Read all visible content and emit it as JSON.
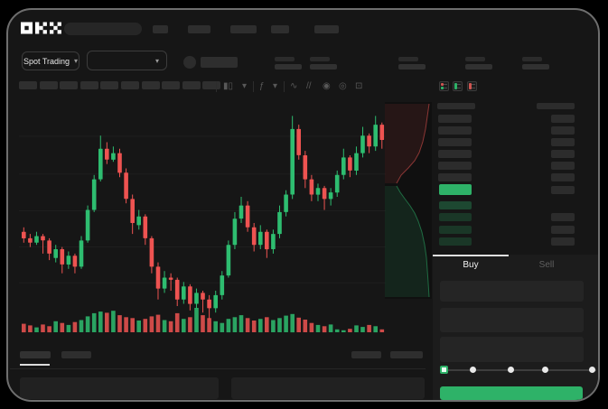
{
  "app": {
    "logo": "OKX"
  },
  "colors": {
    "background": "#000000",
    "card": "#161616",
    "panel": "#1c1c1c",
    "placeholder": "#2e2e2e",
    "accent_green": "#2eb268",
    "candle_up": "#2ebd70",
    "candle_down": "#ee5351",
    "text": "#f0f0f0",
    "muted": "#5f5f5f"
  },
  "topbar": {
    "nav_placeholder_count": 5,
    "has_search": true
  },
  "ticker": {
    "market_type": {
      "label": "Spot Trading",
      "chevron": "▾"
    },
    "pair_selector": {
      "chevron": "▾"
    },
    "stat_placeholder_count": 5
  },
  "chart_toolbar": {
    "timeframe_slot_count": 10,
    "icons": [
      {
        "name": "candle-style-icon",
        "glyph": "▮▯"
      },
      {
        "name": "style-dropdown-icon",
        "glyph": "▾"
      },
      {
        "name": "indicators-icon",
        "glyph": "ƒ"
      },
      {
        "name": "indicators-dropdown-icon",
        "glyph": "▾"
      },
      {
        "name": "line-tool-icon",
        "glyph": "∿"
      },
      {
        "name": "compare-icon",
        "glyph": "//"
      },
      {
        "name": "snapshot-icon",
        "glyph": "◉"
      },
      {
        "name": "settings-icon",
        "glyph": "◎"
      },
      {
        "name": "fullscreen-icon",
        "glyph": "⊡"
      }
    ]
  },
  "chart_data": {
    "type": "candlestick",
    "title": "",
    "xlabel": "",
    "ylabel": "",
    "axis_labels_visible": false,
    "grid": true,
    "grid_values": [
      89.7,
      72.4,
      55.6,
      39.1,
      22.6
    ],
    "value_scale": [
      0,
      100
    ],
    "up_color": "#2ebd70",
    "down_color": "#ee5351",
    "candles_ohlc": [
      [
        46,
        48,
        41,
        43
      ],
      [
        43,
        45,
        39,
        41
      ],
      [
        41,
        46,
        40,
        44
      ],
      [
        44,
        45,
        36,
        42
      ],
      [
        42,
        43,
        33,
        36
      ],
      [
        34,
        40,
        32,
        38
      ],
      [
        38,
        39,
        27,
        31
      ],
      [
        31,
        37,
        29,
        35
      ],
      [
        35,
        36,
        27,
        30
      ],
      [
        30,
        44,
        29,
        42
      ],
      [
        42,
        58,
        41,
        56
      ],
      [
        56,
        72,
        55,
        70
      ],
      [
        70,
        90,
        69,
        84
      ],
      [
        84,
        87,
        77,
        79
      ],
      [
        79,
        85,
        78,
        82
      ],
      [
        82,
        84,
        71,
        73
      ],
      [
        73,
        75,
        59,
        61
      ],
      [
        61,
        63,
        45,
        50
      ],
      [
        49,
        56,
        47,
        53
      ],
      [
        53,
        54,
        40,
        43
      ],
      [
        43,
        44,
        27,
        30
      ],
      [
        30,
        32,
        15,
        20
      ],
      [
        20,
        28,
        18,
        25
      ],
      [
        25,
        27,
        19,
        24
      ],
      [
        24,
        25,
        12,
        15
      ],
      [
        15,
        23,
        13,
        21
      ],
      [
        21,
        22,
        10,
        13
      ],
      [
        13,
        20,
        11,
        18
      ],
      [
        18,
        19,
        9,
        15
      ],
      [
        15,
        17,
        6,
        11
      ],
      [
        11,
        19,
        9,
        17
      ],
      [
        17,
        28,
        15,
        26
      ],
      [
        26,
        42,
        25,
        40
      ],
      [
        40,
        55,
        38,
        52
      ],
      [
        52,
        62,
        50,
        58
      ],
      [
        58,
        60,
        46,
        48
      ],
      [
        48,
        50,
        37,
        40
      ],
      [
        40,
        49,
        38,
        46
      ],
      [
        46,
        47,
        34,
        38
      ],
      [
        38,
        47,
        36,
        45
      ],
      [
        45,
        58,
        43,
        55
      ],
      [
        55,
        65,
        53,
        63
      ],
      [
        63,
        99,
        61,
        93
      ],
      [
        93,
        95,
        79,
        81
      ],
      [
        81,
        83,
        66,
        70
      ],
      [
        70,
        72,
        60,
        63
      ],
      [
        63,
        68,
        60,
        66
      ],
      [
        66,
        67,
        56,
        61
      ],
      [
        61,
        66,
        58,
        64
      ],
      [
        64,
        74,
        62,
        72
      ],
      [
        72,
        84,
        70,
        80
      ],
      [
        80,
        81,
        71,
        74
      ],
      [
        74,
        85,
        72,
        82
      ],
      [
        82,
        94,
        80,
        90
      ],
      [
        90,
        91,
        82,
        85
      ],
      [
        85,
        99,
        83,
        95
      ],
      [
        95,
        96,
        84,
        88
      ]
    ],
    "volume": [
      35,
      28,
      20,
      32,
      25,
      45,
      38,
      30,
      42,
      50,
      65,
      78,
      85,
      80,
      88,
      70,
      62,
      58,
      48,
      55,
      65,
      72,
      50,
      45,
      78,
      55,
      62,
      100,
      70,
      58,
      45,
      38,
      55,
      62,
      70,
      58,
      48,
      55,
      62,
      50,
      58,
      68,
      75,
      60,
      52,
      38,
      30,
      25,
      32,
      12,
      8,
      14,
      28,
      22,
      30,
      25,
      12
    ]
  },
  "depth_chart": {
    "ask_color": "#e75351",
    "bid_color": "#2ebd70",
    "ask_curve": [
      [
        49,
        2
      ],
      [
        47,
        16
      ],
      [
        45,
        30
      ],
      [
        42,
        44
      ],
      [
        38,
        56
      ],
      [
        33,
        65
      ],
      [
        26,
        73
      ],
      [
        18,
        81
      ],
      [
        13,
        90
      ]
    ],
    "bid_curve": [
      [
        13,
        93
      ],
      [
        17,
        100
      ],
      [
        22,
        107
      ],
      [
        28,
        115
      ],
      [
        33,
        123
      ],
      [
        37,
        132
      ],
      [
        41,
        144
      ],
      [
        44,
        158
      ],
      [
        46,
        172
      ],
      [
        47,
        186
      ],
      [
        48,
        200
      ],
      [
        49,
        216
      ]
    ]
  },
  "order_book": {
    "view_mode_icons": [
      "book-split-icon",
      "book-bids-icon",
      "book-asks-icon"
    ],
    "ask_row_count": 6,
    "bid_row_count": 4,
    "current_price_highlight_color": "#2eb268"
  },
  "trade_panel": {
    "tabs": [
      {
        "label": "Buy",
        "active": true
      },
      {
        "label": "Sell",
        "active": false
      }
    ],
    "field_count": 3,
    "amount_slider": {
      "stop_count": 5,
      "active_stop": 0
    },
    "submit_button": {
      "label": "",
      "color": "#2eb268"
    }
  },
  "bottom_bar": {
    "tab_placeholder_count": 2,
    "right_placeholder_count": 2,
    "panel_count": 2
  }
}
